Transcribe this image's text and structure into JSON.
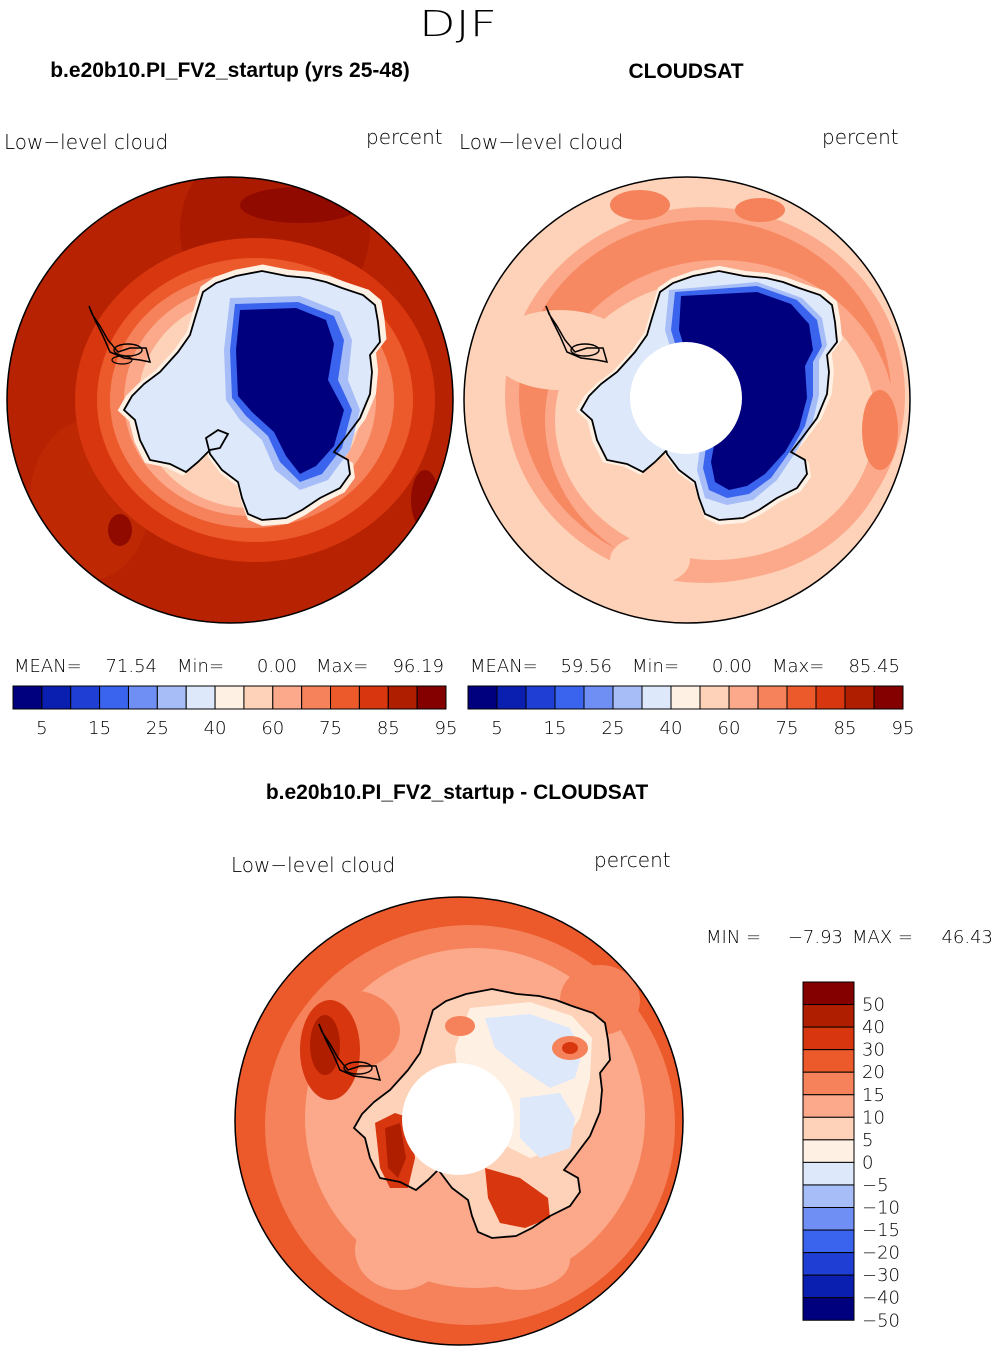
{
  "season": "DJF",
  "panels": [
    {
      "id": "model",
      "title": "b.e20b10.PI_FV2_startup (yrs 25-48)",
      "variable": "Low−level cloud",
      "units": "percent",
      "stats": {
        "mean_label": "MEAN=",
        "mean": "71.54",
        "min_label": "Min=",
        "min": "0.00",
        "max_label": "Max=",
        "max": "96.19"
      },
      "pole_hole": false
    },
    {
      "id": "obs",
      "title": "CLOUDSAT",
      "variable": "Low−level cloud",
      "units": "percent",
      "stats": {
        "mean_label": "MEAN=",
        "mean": "59.56",
        "min_label": "Min=",
        "min": "0.00",
        "max_label": "Max=",
        "max": "85.45"
      },
      "pole_hole": true
    }
  ],
  "colorbar": {
    "labels": [
      "5",
      "15",
      "25",
      "40",
      "60",
      "75",
      "85",
      "95"
    ],
    "colors": [
      "#00007f",
      "#0a1fb0",
      "#1f3fd4",
      "#3a63ee",
      "#6f8ff5",
      "#a6bdf8",
      "#dde8fa",
      "#fff0e4",
      "#fdd2b8",
      "#fba98a",
      "#f5825a",
      "#ec5a2c",
      "#d8360e",
      "#b01e00",
      "#840000"
    ]
  },
  "diff": {
    "title": "b.e20b10.PI_FV2_startup - CLOUDSAT",
    "variable": "Low−level cloud",
    "units": "percent",
    "min_label": "MIN =",
    "min": "−7.93",
    "max_label": "MAX =",
    "max": "46.43",
    "colorbar": {
      "labels": [
        "50",
        "40",
        "30",
        "20",
        "15",
        "10",
        "5",
        "0",
        "−5",
        "−10",
        "−15",
        "−20",
        "−30",
        "−40",
        "−50"
      ],
      "colors": [
        "#840000",
        "#b01e00",
        "#d8360e",
        "#ec5a2c",
        "#f5825a",
        "#fba98a",
        "#fdd2b8",
        "#fff0e4",
        "#dde8fa",
        "#a6bdf8",
        "#6f8ff5",
        "#3a63ee",
        "#1f3fd4",
        "#0a1fb0",
        "#00007f"
      ]
    }
  }
}
